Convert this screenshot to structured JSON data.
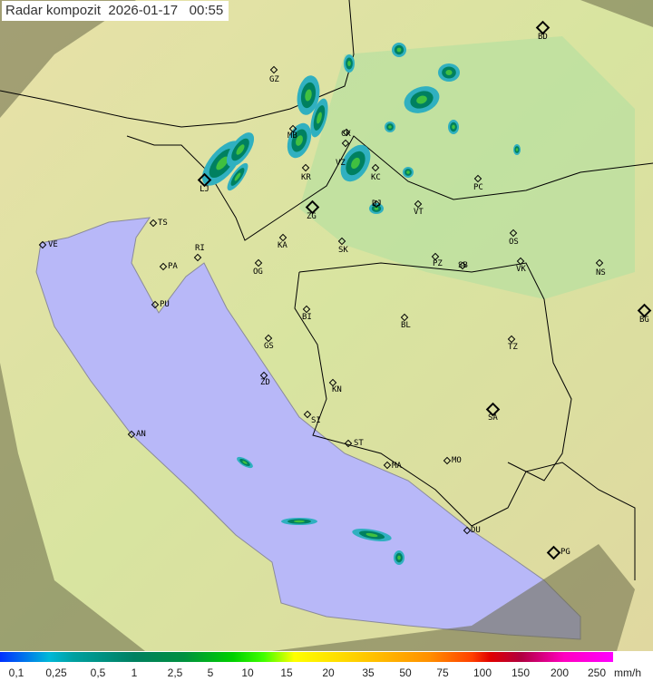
{
  "header": {
    "title": "Radar kompozit",
    "date": "2026-01-17",
    "time": "00:55"
  },
  "cities": [
    {
      "label": "GZ",
      "major": false
    },
    {
      "label": "BD",
      "major": true
    },
    {
      "label": "MB",
      "major": false
    },
    {
      "label": "CK",
      "major": false
    },
    {
      "label": "VZ",
      "major": false
    },
    {
      "label": "KR",
      "major": false
    },
    {
      "label": "KC",
      "major": false
    },
    {
      "label": "LJ",
      "major": true
    },
    {
      "label": "DJ",
      "major": false
    },
    {
      "label": "VT",
      "major": false
    },
    {
      "label": "PC",
      "major": false
    },
    {
      "label": "ZG",
      "major": true
    },
    {
      "label": "TS",
      "major": false
    },
    {
      "label": "VE",
      "major": false
    },
    {
      "label": "RI",
      "major": false
    },
    {
      "label": "KA",
      "major": false
    },
    {
      "label": "SK",
      "major": false
    },
    {
      "label": "OS",
      "major": false
    },
    {
      "label": "PA",
      "major": false
    },
    {
      "label": "OG",
      "major": false
    },
    {
      "label": "PZ",
      "major": false
    },
    {
      "label": "SB",
      "major": false
    },
    {
      "label": "VK",
      "major": false
    },
    {
      "label": "NS",
      "major": false
    },
    {
      "label": "PU",
      "major": false
    },
    {
      "label": "BI",
      "major": false
    },
    {
      "label": "BL",
      "major": false
    },
    {
      "label": "BG",
      "major": true
    },
    {
      "label": "GS",
      "major": false
    },
    {
      "label": "TZ",
      "major": false
    },
    {
      "label": "ZD",
      "major": false
    },
    {
      "label": "KN",
      "major": false
    },
    {
      "label": "SA",
      "major": true
    },
    {
      "label": "SI",
      "major": false
    },
    {
      "label": "AN",
      "major": false
    },
    {
      "label": "ST",
      "major": false
    },
    {
      "label": "MO",
      "major": false
    },
    {
      "label": "MA",
      "major": false
    },
    {
      "label": "DU",
      "major": false
    },
    {
      "label": "PG",
      "major": true
    }
  ],
  "legend": {
    "unit": "mm/h",
    "ticks": [
      "0,1",
      "0,25",
      "0,5",
      "1",
      "2,5",
      "5",
      "10",
      "15",
      "20",
      "35",
      "50",
      "75",
      "100",
      "150",
      "200",
      "250"
    ]
  },
  "colors": {
    "sea": "#b8b8f8",
    "land": "#d8e8a8",
    "outside_coverage": "#7a7a50",
    "rain_low": "#30b0c0",
    "rain_mid": "#008060",
    "rain_high": "#40c040"
  }
}
